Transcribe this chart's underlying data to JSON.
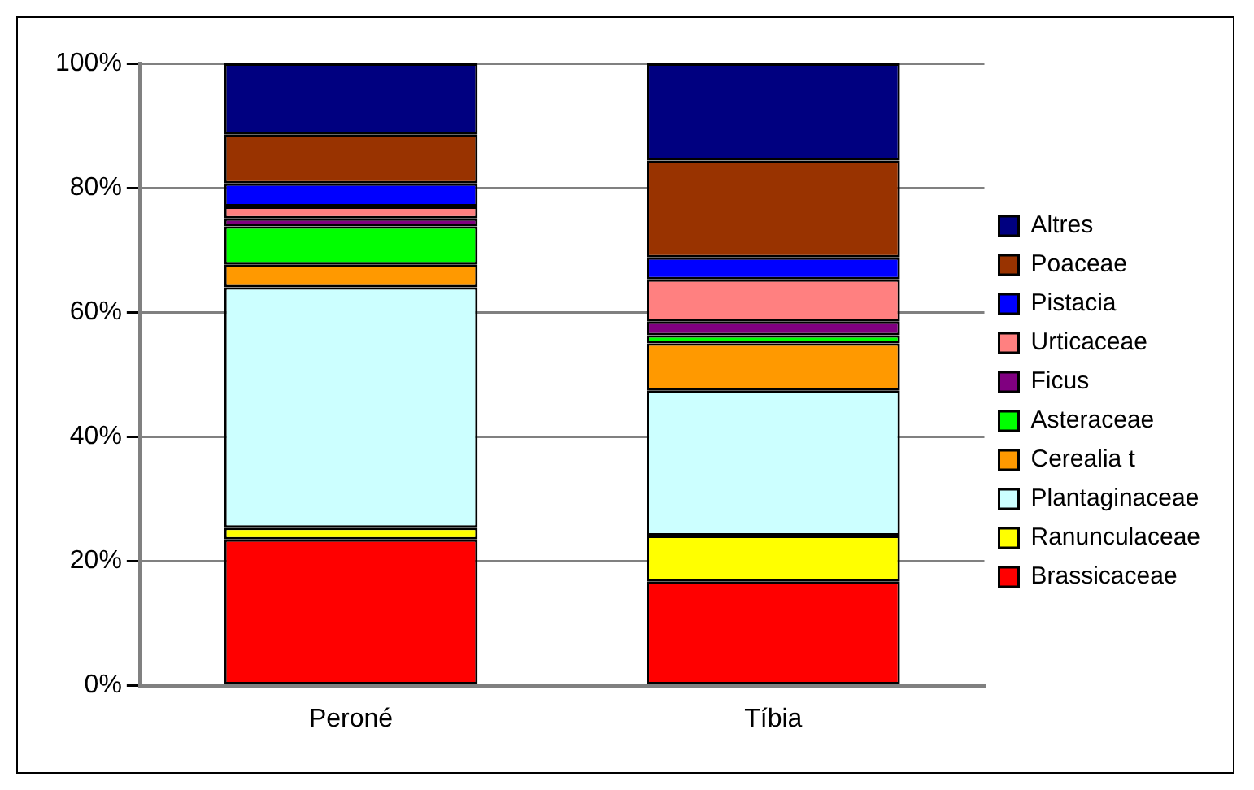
{
  "chart_data": {
    "type": "bar",
    "stacked": true,
    "categories": [
      "Peroné",
      "Tíbia"
    ],
    "series": [
      {
        "name": "Brassicaceae",
        "color": "#ff0000",
        "values": [
          23.5,
          16.7
        ]
      },
      {
        "name": "Ranunculaceae",
        "color": "#ffff00",
        "values": [
          1.9,
          7.4
        ]
      },
      {
        "name": "Plantaginaceae",
        "color": "#ccffff",
        "values": [
          38.6,
          23.3
        ]
      },
      {
        "name": "Cerealia t",
        "color": "#ff9900",
        "values": [
          3.7,
          7.6
        ]
      },
      {
        "name": "Asteraceae",
        "color": "#00ff00",
        "values": [
          6.1,
          1.3
        ]
      },
      {
        "name": "Ficus",
        "color": "#800080",
        "values": [
          1.3,
          2.2
        ]
      },
      {
        "name": "Urticaceae",
        "color": "#ff8080",
        "values": [
          1.9,
          6.8
        ]
      },
      {
        "name": "Pistacia",
        "color": "#0000ff",
        "values": [
          3.7,
          3.5
        ]
      },
      {
        "name": "Poaceae",
        "color": "#993300",
        "values": [
          7.9,
          15.6
        ]
      },
      {
        "name": "Altres",
        "color": "#000080",
        "values": [
          11.4,
          15.6
        ]
      }
    ],
    "ylim": [
      0,
      100
    ],
    "yticks": [
      {
        "value": 0,
        "label": "0%"
      },
      {
        "value": 20,
        "label": "20%"
      },
      {
        "value": 40,
        "label": "40%"
      },
      {
        "value": 60,
        "label": "60%"
      },
      {
        "value": 80,
        "label": "80%"
      },
      {
        "value": 100,
        "label": "100%"
      }
    ],
    "grid": "y",
    "legend": "right"
  }
}
